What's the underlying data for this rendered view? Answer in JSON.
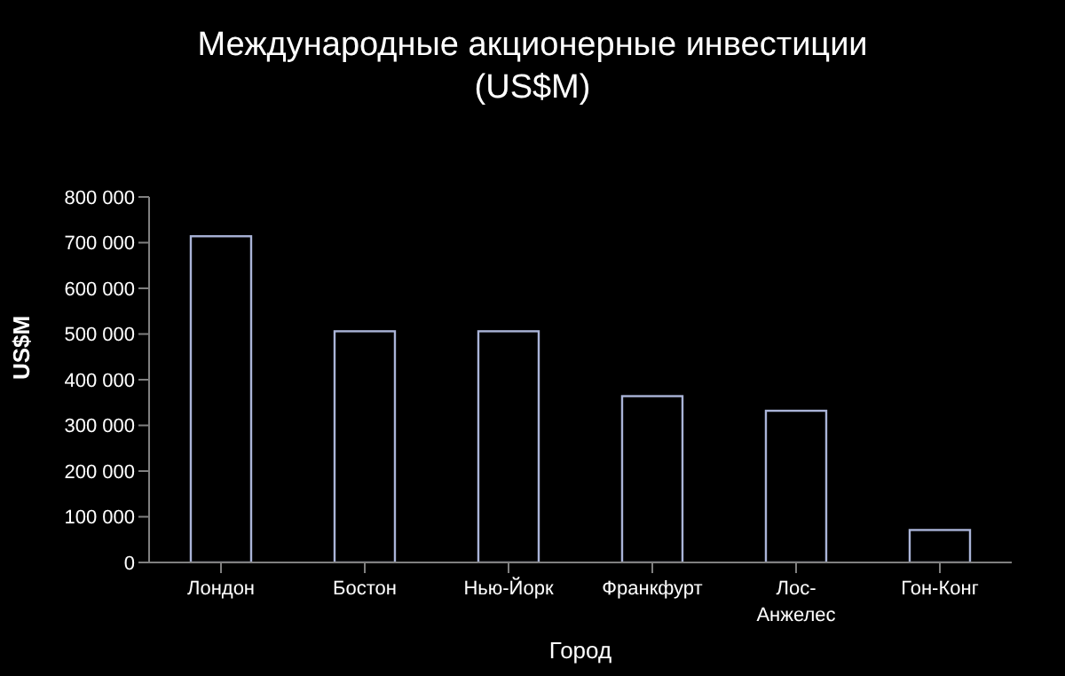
{
  "chart_data": {
    "type": "bar",
    "title": "Международные акционерные инвестиции\n(US$M)",
    "xlabel": "Город",
    "ylabel": "US$M",
    "categories": [
      "Лондон",
      "Бостон",
      "Нью-Йорк",
      "Франкфурт",
      "Лос-Анжелес",
      "Гон-Конг"
    ],
    "values": [
      714000,
      506000,
      506000,
      364000,
      332000,
      71000
    ],
    "color": "#000000",
    "ylim": [
      0,
      800000
    ],
    "yticks": [
      {
        "value": 0,
        "label": "0"
      },
      {
        "value": 100000,
        "label": "100 000"
      },
      {
        "value": 200000,
        "label": "200 000"
      },
      {
        "value": 300000,
        "label": "300 000"
      },
      {
        "value": 400000,
        "label": "400 000"
      },
      {
        "value": 500000,
        "label": "500 000"
      },
      {
        "value": 600000,
        "label": "600 000"
      },
      {
        "value": 700000,
        "label": "700 000"
      },
      {
        "value": 800000,
        "label": "800 000"
      }
    ],
    "grid": false,
    "legend": false
  }
}
